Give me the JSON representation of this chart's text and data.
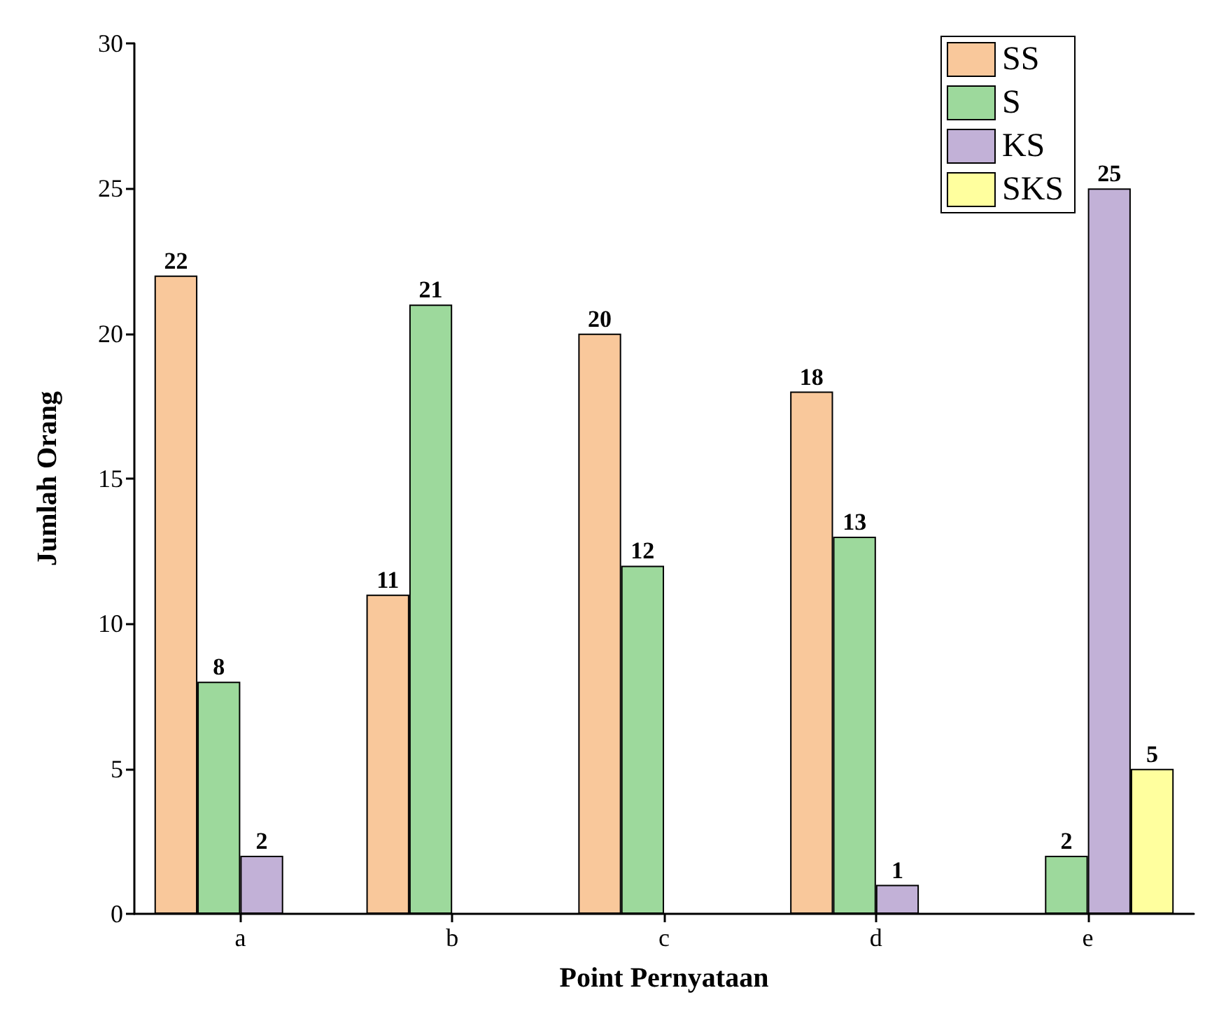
{
  "chart_data": {
    "type": "bar",
    "xlabel": "Point Pernyataan",
    "ylabel": "Jumlah Orang",
    "categories": [
      "a",
      "b",
      "c",
      "d",
      "e"
    ],
    "series": [
      {
        "name": "SS",
        "color": "#f9c89b",
        "values": [
          22,
          11,
          20,
          18,
          null
        ]
      },
      {
        "name": "S",
        "color": "#9dd99c",
        "values": [
          8,
          21,
          12,
          13,
          2
        ]
      },
      {
        "name": "KS",
        "color": "#c2b1d7",
        "values": [
          2,
          null,
          null,
          1,
          25
        ]
      },
      {
        "name": "SKS",
        "color": "#ffff9e",
        "values": [
          null,
          null,
          null,
          null,
          5
        ]
      }
    ],
    "ylim": [
      0,
      30
    ],
    "yticks": [
      0,
      5,
      10,
      15,
      20,
      25,
      30
    ],
    "grid": false,
    "legend": "top right",
    "data_labels": true
  }
}
